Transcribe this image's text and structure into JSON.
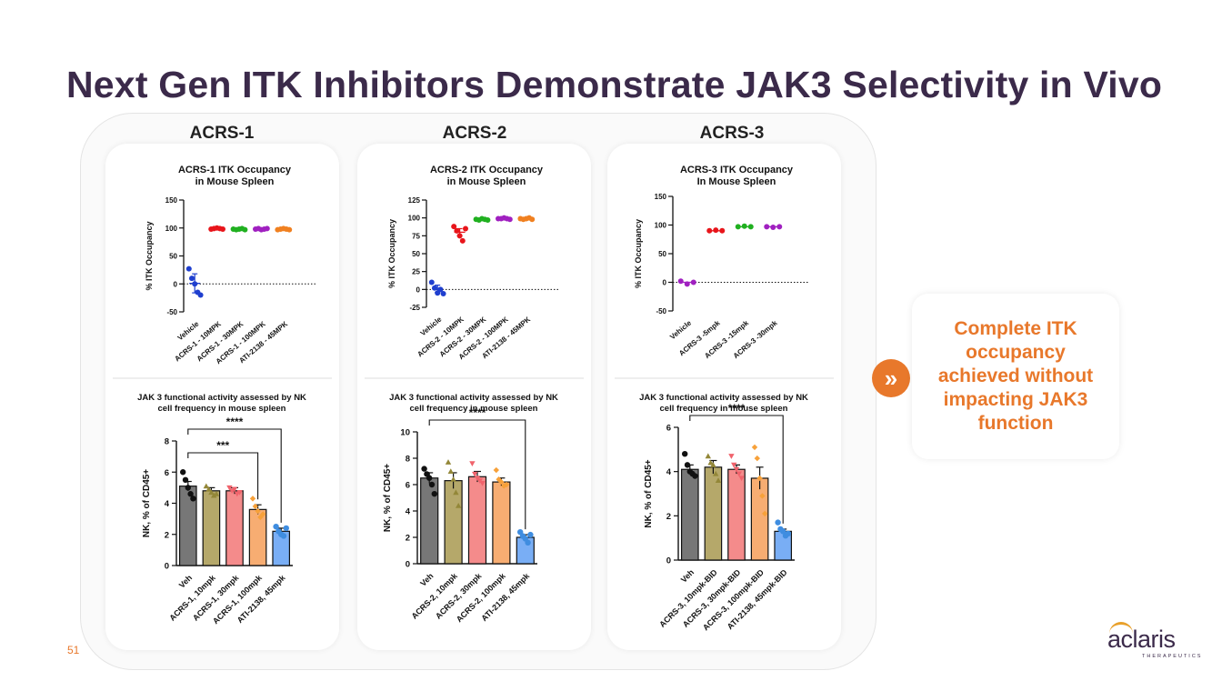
{
  "title": "Next Gen ITK Inhibitors Demonstrate JAK3 Selectivity in Vivo",
  "columns": [
    "ACRS-1",
    "ACRS-2",
    "ACRS-3"
  ],
  "callout": "Complete ITK occupancy achieved without impacting JAK3 function",
  "page_number": "51",
  "logo": {
    "word": "aclaris",
    "sub": "THERAPEUTICS"
  },
  "colors": {
    "accent": "#e8782b",
    "title": "#3b2a4a"
  },
  "chart_data": [
    {
      "type": "scatter",
      "title": "ACRS-1 ITK Occupancy\nin Mouse Spleen",
      "ylabel": "% ITK Occupancy",
      "ylim": [
        -50,
        150
      ],
      "yticks": [
        -50,
        0,
        50,
        100,
        150
      ],
      "categories": [
        "Vehicle",
        "ACRS-1 - 10MPK",
        "ACRS-1 - 30MPK",
        "ACRS-1 - 100MPK",
        "ATI-2138 - 45MPK"
      ],
      "colors": [
        "#1f3fcf",
        "#e8151b",
        "#20b020",
        "#a020c0",
        "#f08020"
      ],
      "points": [
        [
          27,
          10,
          0,
          -15,
          -20
        ],
        [
          98,
          99,
          100,
          99,
          98
        ],
        [
          98,
          97,
          98,
          99,
          97
        ],
        [
          98,
          99,
          97,
          98,
          99
        ],
        [
          97,
          98,
          99,
          98,
          97
        ]
      ],
      "means": [
        1,
        99,
        98,
        98,
        98
      ],
      "errors": [
        17,
        0,
        0,
        0,
        0
      ],
      "refline": 0
    },
    {
      "type": "scatter",
      "title": "ACRS-2 ITK Occupancy\nin Mouse Spleen",
      "ylabel": "% ITK Occupancy",
      "ylim": [
        -25,
        125
      ],
      "yticks": [
        -25,
        0,
        25,
        50,
        75,
        100,
        125
      ],
      "categories": [
        "Vehicle",
        "ACRS-2 - 10MPK",
        "ACRS-2 - 30MPK",
        "ACRS-2 - 100MPK",
        "ATI-2138 - 45MPK"
      ],
      "colors": [
        "#1f3fcf",
        "#e8151b",
        "#20b020",
        "#a020c0",
        "#f08020"
      ],
      "points": [
        [
          10,
          2,
          -5,
          0,
          -6
        ],
        [
          88,
          82,
          75,
          68,
          85
        ],
        [
          98,
          97,
          99,
          98,
          97
        ],
        [
          99,
          99,
          100,
          99,
          98
        ],
        [
          99,
          98,
          99,
          100,
          98
        ]
      ],
      "means": [
        1,
        80,
        98,
        99,
        99
      ],
      "errors": [
        5,
        5,
        0,
        0,
        0
      ],
      "refline": 0
    },
    {
      "type": "scatter",
      "title": "ACRS-3 ITK Occupancy\nIn Mouse Spleen",
      "ylabel": "% ITK Occupancy",
      "ylim": [
        -50,
        150
      ],
      "yticks": [
        -50,
        0,
        50,
        100,
        150
      ],
      "categories": [
        "Vehicle",
        "ACRS-3 -5mpk",
        "ACRS-3 -15mpk",
        "ACRS-3 -30mpk"
      ],
      "colors": [
        "#a020c0",
        "#e8151b",
        "#20b020",
        "#a020c0"
      ],
      "points": [
        [
          2,
          -3,
          0
        ],
        [
          90,
          91,
          90
        ],
        [
          97,
          98,
          97
        ],
        [
          97,
          96,
          97
        ]
      ],
      "means": [
        0,
        90,
        97,
        97
      ],
      "errors": [
        0,
        0,
        0,
        0
      ],
      "refline": 0
    },
    {
      "type": "bar",
      "title": "JAK 3 functional activity assessed by NK\ncell frequency in mouse spleen",
      "ylabel": "NK, % of CD45+",
      "ylim": [
        0,
        8
      ],
      "yticks": [
        0,
        2,
        4,
        6,
        8
      ],
      "categories": [
        "Veh",
        "ACRS-1, 10mpk",
        "ACRS-1, 30mpk",
        "ACRS-1, 100mpk",
        "ATI-2138, 45mpk"
      ],
      "values": [
        5.1,
        4.8,
        4.8,
        3.6,
        2.2
      ],
      "errors": [
        0.3,
        0.2,
        0.2,
        0.3,
        0.2
      ],
      "points": [
        [
          6.0,
          5.5,
          5.0,
          4.6,
          4.3
        ],
        [
          5.1,
          4.9,
          4.7,
          4.5,
          4.6
        ],
        [
          5.0,
          4.8,
          4.9,
          4.6,
          4.7
        ],
        [
          4.3,
          3.8,
          3.5,
          3.1,
          3.3
        ],
        [
          2.5,
          2.2,
          2.0,
          1.9,
          2.4
        ]
      ],
      "markers": [
        "circle",
        "triangle",
        "triangle-down",
        "diamond",
        "circle"
      ],
      "significance": [
        {
          "from": 0,
          "to": 3,
          "label": "***"
        },
        {
          "from": 0,
          "to": 4,
          "label": "****"
        }
      ]
    },
    {
      "type": "bar",
      "title": "JAK 3 functional activity assessed by NK\ncell frequency in mouse spleen",
      "ylabel": "NK, % of CD45+",
      "ylim": [
        0,
        10
      ],
      "yticks": [
        0,
        2,
        4,
        6,
        8,
        10
      ],
      "categories": [
        "Veh",
        "ACRS-2, 10mpk",
        "ACRS-2, 30mpk",
        "ACRS-2, 100mpk",
        "ATI-2138, 45mpk"
      ],
      "values": [
        6.5,
        6.3,
        6.6,
        6.2,
        2.0
      ],
      "errors": [
        0.4,
        0.6,
        0.4,
        0.3,
        0.2
      ],
      "points": [
        [
          7.2,
          6.8,
          6.5,
          6.0,
          5.3
        ],
        [
          7.7,
          7.0,
          6.4,
          5.4,
          4.4
        ],
        [
          7.6,
          6.8,
          6.5,
          6.3,
          6.1
        ],
        [
          7.1,
          6.4,
          6.2,
          5.9,
          6.0
        ],
        [
          2.4,
          2.1,
          1.9,
          1.6,
          2.2
        ]
      ],
      "markers": [
        "circle",
        "triangle",
        "triangle-down",
        "diamond",
        "circle"
      ],
      "significance": [
        {
          "from": 0,
          "to": 4,
          "label": "****"
        }
      ]
    },
    {
      "type": "bar",
      "title": "JAK 3 functional activity assessed by NK\ncell frequency in mouse spleen",
      "ylabel": "NK, % of CD45+",
      "ylim": [
        0,
        6
      ],
      "yticks": [
        0,
        2,
        4,
        6
      ],
      "categories": [
        "Veh",
        "ACRS-3, 10mpk-BID",
        "ACRS-3, 30mpk-BID",
        "ACRS-3, 100mpk-BID",
        "ATI-2138, 45mpk-BID"
      ],
      "values": [
        4.1,
        4.2,
        4.1,
        3.7,
        1.3
      ],
      "errors": [
        0.2,
        0.3,
        0.2,
        0.5,
        0.1
      ],
      "points": [
        [
          4.8,
          4.3,
          4.0,
          3.9,
          3.8
        ],
        [
          4.7,
          4.4,
          4.3,
          3.9,
          3.6
        ],
        [
          4.7,
          4.3,
          4.1,
          3.9,
          3.7
        ],
        [
          5.1,
          4.6,
          3.7,
          2.9,
          2.1
        ],
        [
          1.7,
          1.4,
          1.3,
          1.1,
          1.2
        ]
      ],
      "markers": [
        "circle",
        "triangle",
        "triangle-down",
        "diamond",
        "circle"
      ],
      "significance": [
        {
          "from": 0,
          "to": 4,
          "label": "****"
        }
      ]
    }
  ]
}
